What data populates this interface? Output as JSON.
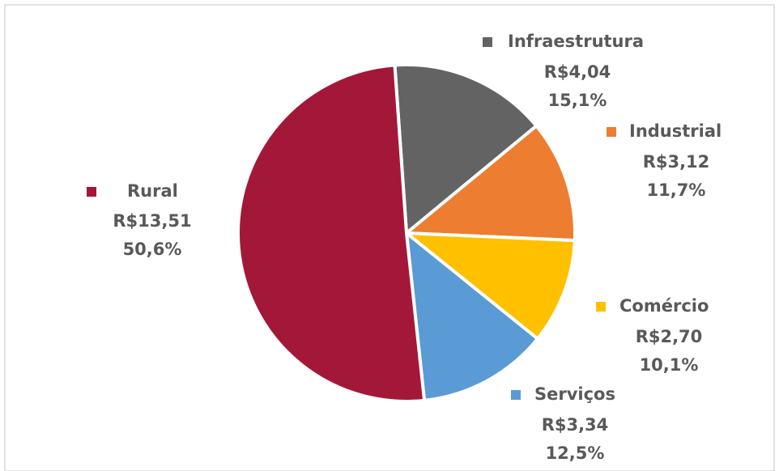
{
  "chart_data": {
    "type": "pie",
    "categories": [
      "Infraestrutura",
      "Industrial",
      "Comércio",
      "Serviços",
      "Rural"
    ],
    "values": [
      4.04,
      3.12,
      2.7,
      3.34,
      13.51
    ],
    "value_labels": [
      "R$4,04",
      "R$3,12",
      "R$2,70",
      "R$3,34",
      "R$13,51"
    ],
    "percentages": [
      15.1,
      11.7,
      10.1,
      12.5,
      50.6
    ],
    "percentage_labels": [
      "15,1%",
      "11,7%",
      "10,1%",
      "12,5%",
      "50,6%"
    ],
    "colors": [
      "#636363",
      "#ed7d31",
      "#ffc000",
      "#5b9bd5",
      "#a31838"
    ]
  }
}
